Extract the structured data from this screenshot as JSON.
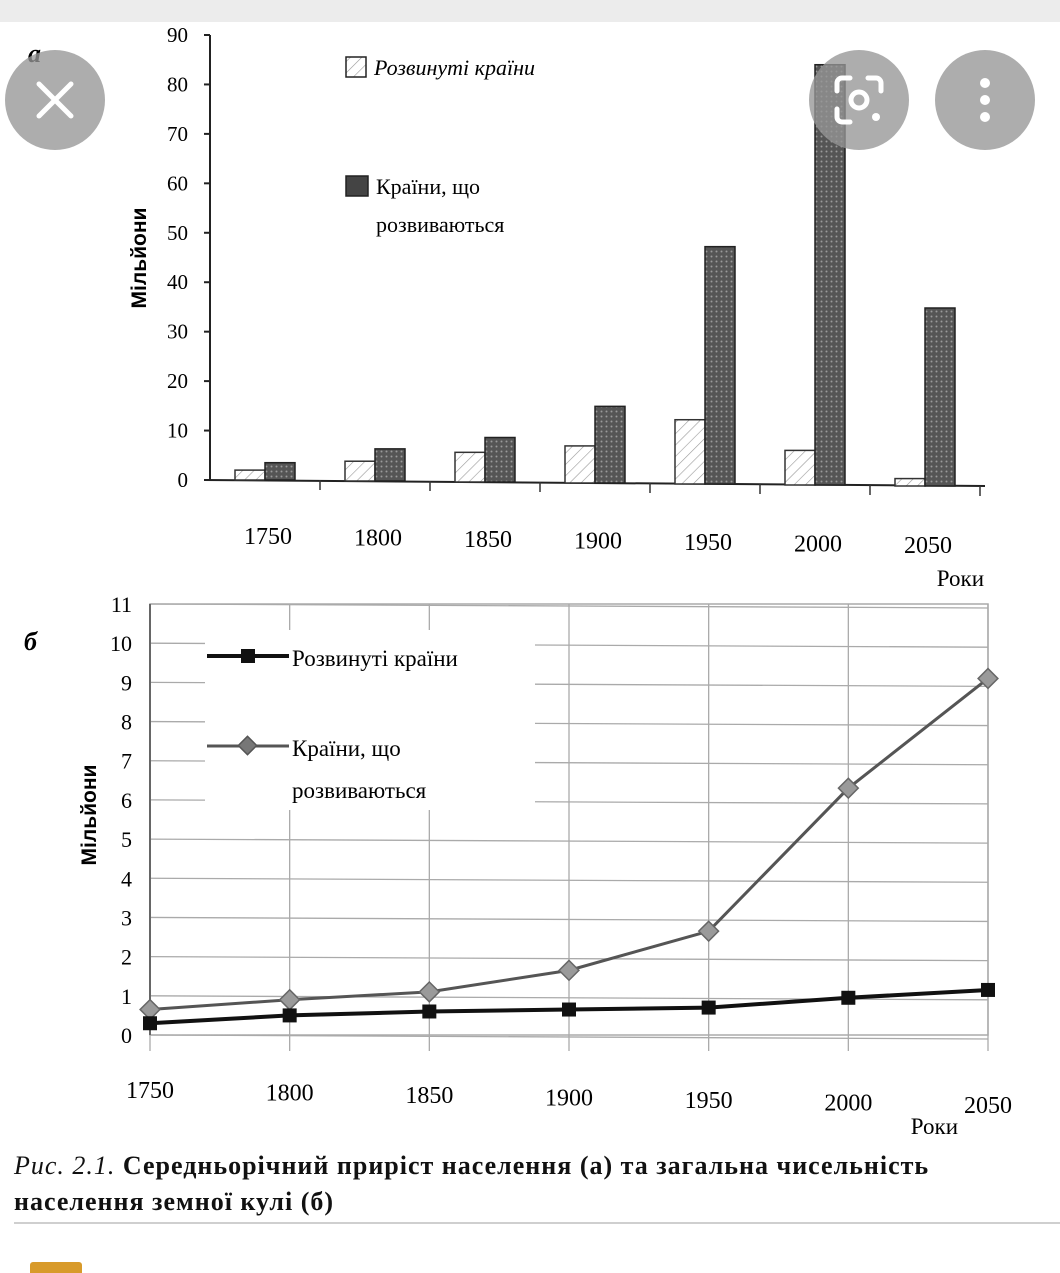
{
  "chart_data": [
    {
      "type": "bar",
      "panel_label": "а",
      "categories": [
        "1750",
        "1800",
        "1850",
        "1900",
        "1950",
        "2000",
        "2050"
      ],
      "series": [
        {
          "name": "Розвинуті країни",
          "values": [
            2,
            4,
            6,
            7.5,
            13,
            7,
            1.5
          ]
        },
        {
          "name": "Країни, що розвиваються",
          "values": [
            3.5,
            6.5,
            9,
            15.5,
            48,
            85,
            36
          ]
        }
      ],
      "xlabel": "Роки",
      "ylabel": "Мільйони",
      "ylim": [
        0,
        90
      ],
      "yticks": [
        0,
        10,
        20,
        30,
        40,
        50,
        60,
        70,
        80,
        90
      ],
      "grid": false,
      "legend_position": "top",
      "legend_lines": [
        [
          "Розвинуті країни"
        ],
        [
          "Країни, що",
          "розвиваються"
        ]
      ],
      "colors": {
        "developed": "#ffffff",
        "developing": "#5c5c5c"
      }
    },
    {
      "type": "line",
      "panel_label": "б",
      "x": [
        1750,
        1800,
        1850,
        1900,
        1950,
        2000,
        2050
      ],
      "series": [
        {
          "name": "Розвинуті країни",
          "values": [
            0.3,
            0.5,
            0.6,
            0.65,
            0.7,
            0.95,
            1.15
          ]
        },
        {
          "name": "Країни, що розвиваються",
          "values": [
            0.65,
            0.9,
            1.1,
            1.65,
            2.65,
            6.3,
            9.1
          ]
        }
      ],
      "xlabel": "Роки",
      "ylabel": "Мільйони",
      "ylim": [
        0,
        11
      ],
      "yticks": [
        0,
        1,
        2,
        3,
        4,
        5,
        6,
        7,
        8,
        9,
        10,
        11
      ],
      "grid": true,
      "legend_position": "top-left",
      "legend_lines": [
        [
          "Розвинуті країни"
        ],
        [
          "Країни, що",
          "розвиваються"
        ]
      ],
      "colors": {
        "developed": "#111111",
        "developing": "#555555",
        "developing_marker": "#9a9a9a"
      }
    }
  ],
  "caption": {
    "figure": "Рис. 2.1.",
    "text": "Середньорічний приріст населення (а) та загальна чисельність населення земної кулі (б)"
  },
  "overlay": {
    "close": "close-icon",
    "lens": "lens-scan-icon",
    "more": "more-vertical-icon"
  }
}
